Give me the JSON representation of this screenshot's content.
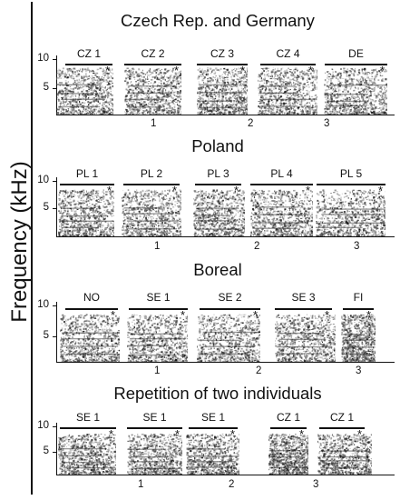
{
  "y_axis_label": "Frequency (kHz)",
  "y_ticks": [
    "10",
    "5"
  ],
  "panels": [
    {
      "title": "Czech Rep. and Germany",
      "segments": [
        "CZ 1",
        "CZ 2",
        "CZ 3",
        "CZ 4",
        "DE"
      ],
      "time_ticks": [
        "1",
        "2",
        "3"
      ]
    },
    {
      "title": "Poland",
      "segments": [
        "PL 1",
        "PL 2",
        "PL 3",
        "PL 4",
        "PL 5"
      ],
      "time_ticks": [
        "1",
        "2",
        "3"
      ]
    },
    {
      "title": "Boreal",
      "segments": [
        "NO",
        "SE 1",
        "SE 2",
        "SE 3",
        "FI"
      ],
      "time_ticks": [
        "1",
        "2",
        "3"
      ]
    },
    {
      "title": "Repetition of two individuals",
      "segments": [
        "SE 1",
        "SE 1",
        "SE 1",
        "CZ 1",
        "CZ 1"
      ],
      "time_ticks": [
        "1",
        "2",
        "3"
      ]
    }
  ],
  "marker": "*"
}
